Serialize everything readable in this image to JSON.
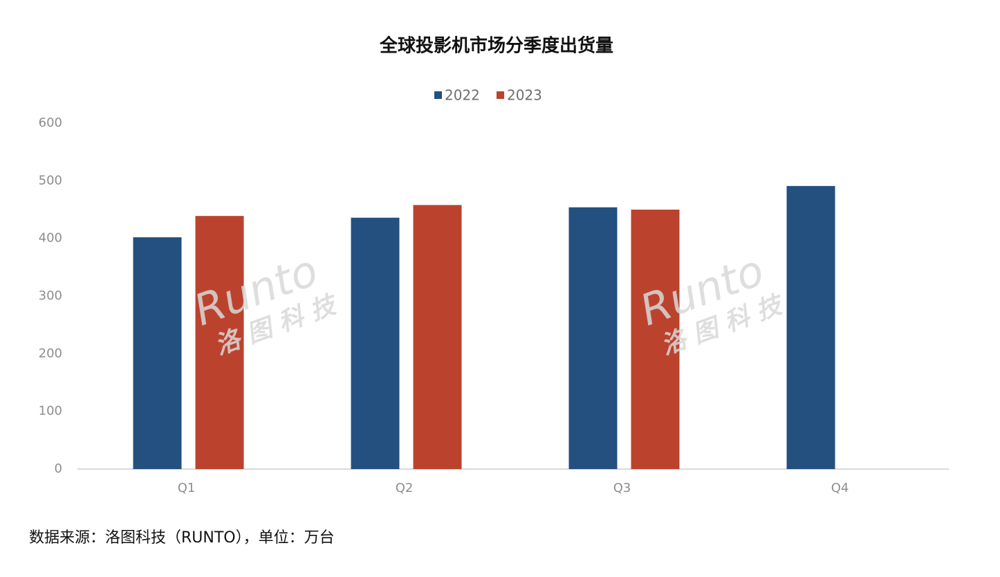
{
  "chart_data": {
    "type": "bar",
    "title": "全球投影机市场分季度出货量",
    "categories": [
      "Q1",
      "Q2",
      "Q3",
      "Q4"
    ],
    "series": [
      {
        "name": "2022",
        "color": "#23507f",
        "values": [
          402,
          436,
          454,
          491
        ]
      },
      {
        "name": "2023",
        "color": "#bb432e",
        "values": [
          439,
          458,
          450,
          null
        ]
      }
    ],
    "ylim": [
      0,
      600
    ],
    "yticks": [
      0,
      100,
      200,
      300,
      400,
      500,
      600
    ],
    "grid": false,
    "legend": "top",
    "watermark": {
      "brand": "Runto",
      "name": "洛 图 科 技"
    },
    "source": "数据来源：洛图科技（RUNTO），单位：万台"
  }
}
